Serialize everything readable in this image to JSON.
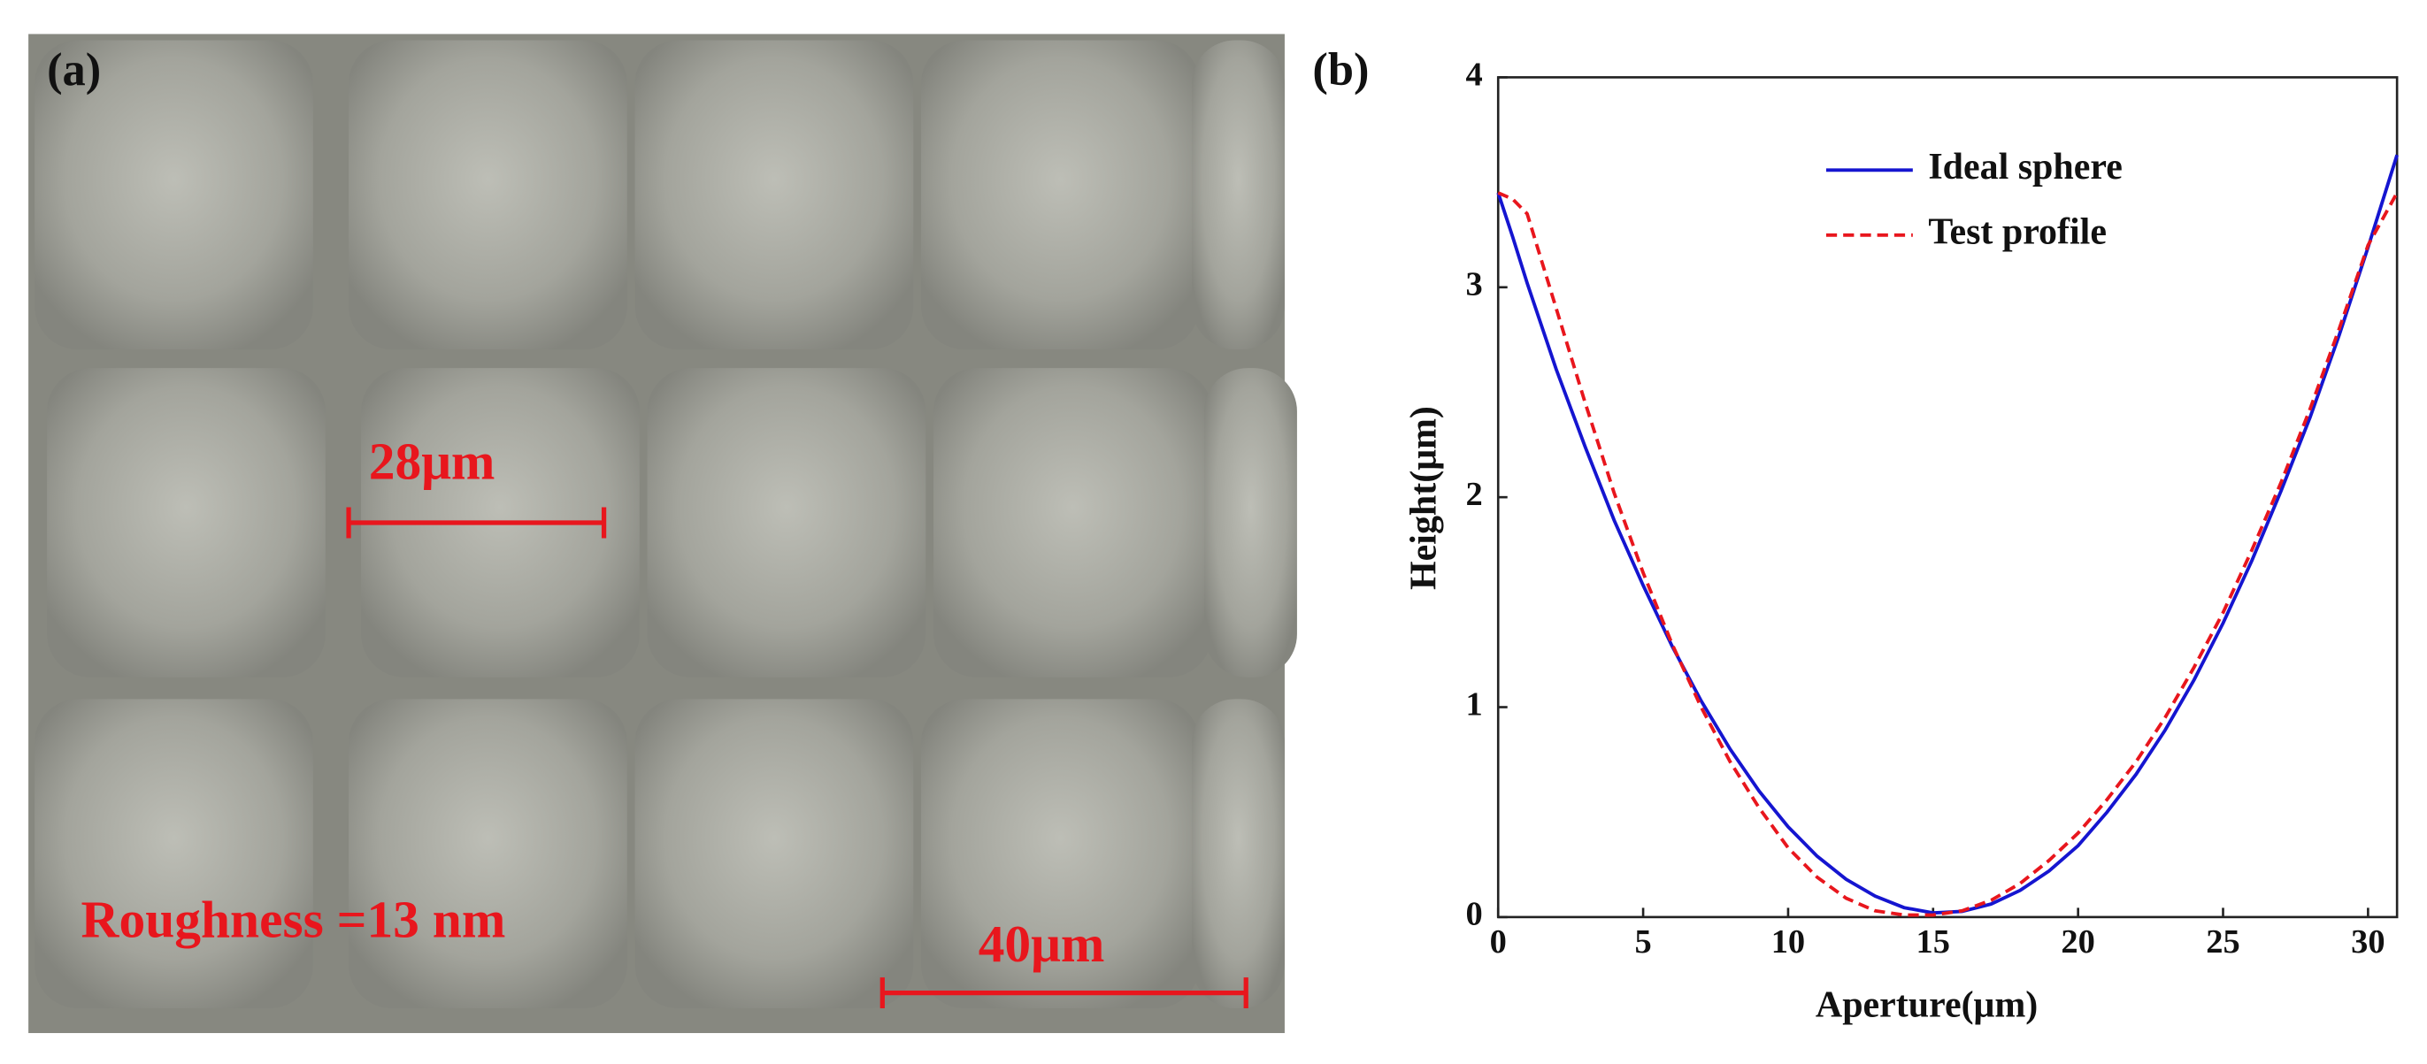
{
  "image_panel": {
    "label": "(a)",
    "scale_bar_small": "28μm",
    "scale_bar_large": "40μm",
    "roughness": "Roughness =13 nm"
  },
  "chart_data": {
    "type": "line",
    "panel_label": "(b)",
    "x_label": "Aperture(μm)",
    "y_label": "Height(μm)",
    "x": [
      0,
      0.5,
      1,
      2,
      3,
      4,
      5,
      6,
      7,
      8,
      9,
      10,
      11,
      12,
      13,
      14,
      15,
      16,
      17,
      18,
      19,
      20,
      21,
      22,
      23,
      24,
      25,
      26,
      27,
      28,
      29,
      30,
      31
    ],
    "series": [
      {
        "name": "Ideal sphere",
        "color": "#1515d0",
        "dash": false,
        "values": [
          3.45,
          3.24,
          3.02,
          2.61,
          2.24,
          1.89,
          1.58,
          1.29,
          1.03,
          0.8,
          0.6,
          0.43,
          0.29,
          0.18,
          0.1,
          0.045,
          0.02,
          0.027,
          0.062,
          0.127,
          0.22,
          0.34,
          0.5,
          0.68,
          0.89,
          1.13,
          1.4,
          1.7,
          2.03,
          2.38,
          2.77,
          3.19,
          3.63
        ]
      },
      {
        "name": "Test profile",
        "color": "#e8161d",
        "dash": true,
        "values": [
          3.45,
          3.42,
          3.35,
          2.9,
          2.45,
          2.02,
          1.64,
          1.3,
          1.0,
          0.74,
          0.52,
          0.33,
          0.19,
          0.09,
          0.03,
          0.01,
          0.01,
          0.03,
          0.08,
          0.16,
          0.27,
          0.4,
          0.56,
          0.74,
          0.95,
          1.19,
          1.45,
          1.75,
          2.07,
          2.42,
          2.8,
          3.2,
          3.45
        ]
      }
    ],
    "xlim": [
      0,
      31
    ],
    "ylim": [
      0,
      4
    ],
    "xticks": [
      0,
      5,
      10,
      15,
      20,
      25,
      30
    ],
    "yticks": [
      0,
      1,
      2,
      3,
      4
    ],
    "legend": "upper center",
    "grid": false
  }
}
